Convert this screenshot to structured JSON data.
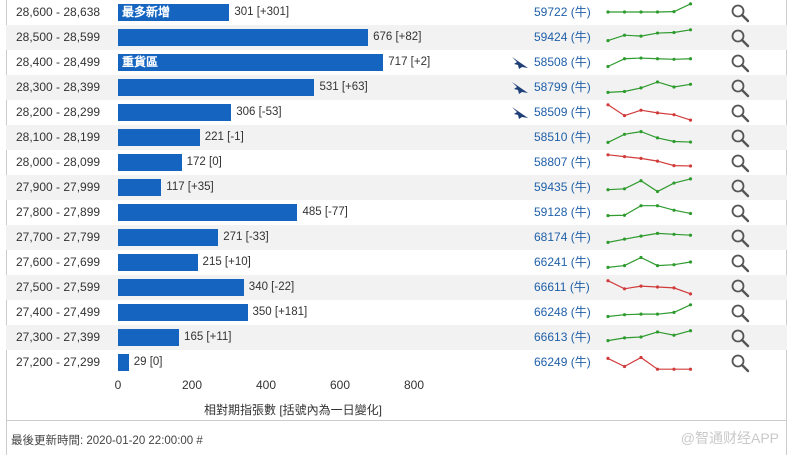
{
  "chart_data": {
    "type": "bar",
    "orientation": "horizontal",
    "xlabel": "相對期指張數 [括號內為一日變化]",
    "xlim": [
      0,
      800
    ],
    "x_ticks": [
      "0",
      "200",
      "400",
      "600",
      "800"
    ],
    "rows": [
      {
        "range": "28,600 - 28,638",
        "value": 301,
        "change": "+301",
        "value_text": "301 [+301]",
        "inlabel": "最多新增",
        "code": "59722 (牛)",
        "bird": false,
        "spark_color": "#2e9b2e",
        "spark": [
          0.5,
          0.5,
          0.5,
          0.5,
          0.52,
          0.95
        ]
      },
      {
        "range": "28,500 - 28,599",
        "value": 676,
        "change": "+82",
        "value_text": "676 [+82]",
        "inlabel": "",
        "code": "59424 (牛)",
        "bird": false,
        "spark_color": "#2e9b2e",
        "spark": [
          0.3,
          0.6,
          0.55,
          0.72,
          0.75,
          0.9
        ]
      },
      {
        "range": "28,400 - 28,499",
        "value": 717,
        "change": "+2",
        "value_text": "717 [+2]",
        "inlabel": "重貨區",
        "code": "58508 (牛)",
        "bird": true,
        "spark_color": "#2e9b2e",
        "spark": [
          0.25,
          0.68,
          0.72,
          0.68,
          0.65,
          0.68
        ]
      },
      {
        "range": "28,300 - 28,399",
        "value": 531,
        "change": "+63",
        "value_text": "531 [+63]",
        "inlabel": "",
        "code": "58799 (牛)",
        "bird": true,
        "spark_color": "#2e9b2e",
        "spark": [
          0.2,
          0.25,
          0.45,
          0.78,
          0.5,
          0.65
        ]
      },
      {
        "range": "28,200 - 28,299",
        "value": 306,
        "change": "-53",
        "value_text": "306 [-53]",
        "inlabel": "",
        "code": "58509 (牛)",
        "bird": true,
        "spark_color": "#d23b3b",
        "spark": [
          0.9,
          0.3,
          0.6,
          0.45,
          0.35,
          0.05
        ]
      },
      {
        "range": "28,100 - 28,199",
        "value": 221,
        "change": "-1",
        "value_text": "221 [-1]",
        "inlabel": "",
        "code": "58510 (牛)",
        "bird": false,
        "spark_color": "#2e9b2e",
        "spark": [
          0.2,
          0.65,
          0.8,
          0.45,
          0.25,
          0.22
        ]
      },
      {
        "range": "28,000 - 28,099",
        "value": 172,
        "change": "0",
        "value_text": "172 [0]",
        "inlabel": "",
        "code": "58807 (牛)",
        "bird": false,
        "spark_color": "#d23b3b",
        "spark": [
          0.9,
          0.8,
          0.7,
          0.55,
          0.3,
          0.28
        ]
      },
      {
        "range": "27,900 - 27,999",
        "value": 117,
        "change": "+35",
        "value_text": "117 [+35]",
        "inlabel": "",
        "code": "59435 (牛)",
        "bird": false,
        "spark_color": "#2e9b2e",
        "spark": [
          0.35,
          0.4,
          0.85,
          0.25,
          0.72,
          0.95
        ]
      },
      {
        "range": "27,800 - 27,899",
        "value": 485,
        "change": "-77",
        "value_text": "485 [-77]",
        "inlabel": "",
        "code": "59128 (牛)",
        "bird": false,
        "spark_color": "#2e9b2e",
        "spark": [
          0.3,
          0.32,
          0.85,
          0.85,
          0.6,
          0.42
        ]
      },
      {
        "range": "27,700 - 27,799",
        "value": 271,
        "change": "-33",
        "value_text": "271 [-33]",
        "inlabel": "",
        "code": "68174 (牛)",
        "bird": false,
        "spark_color": "#2e9b2e",
        "spark": [
          0.2,
          0.38,
          0.55,
          0.7,
          0.65,
          0.6
        ]
      },
      {
        "range": "27,600 - 27,699",
        "value": 215,
        "change": "+10",
        "value_text": "215 [+10]",
        "inlabel": "",
        "code": "66241 (牛)",
        "bird": false,
        "spark_color": "#2e9b2e",
        "spark": [
          0.2,
          0.3,
          0.75,
          0.3,
          0.35,
          0.5
        ]
      },
      {
        "range": "27,500 - 27,599",
        "value": 340,
        "change": "-22",
        "value_text": "340 [-22]",
        "inlabel": "",
        "code": "66611 (牛)",
        "bird": false,
        "spark_color": "#d23b3b",
        "spark": [
          0.85,
          0.4,
          0.55,
          0.5,
          0.45,
          0.12
        ]
      },
      {
        "range": "27,400 - 27,499",
        "value": 350,
        "change": "+181",
        "value_text": "350 [+181]",
        "inlabel": "",
        "code": "66248 (牛)",
        "bird": false,
        "spark_color": "#2e9b2e",
        "spark": [
          0.25,
          0.35,
          0.38,
          0.38,
          0.48,
          0.9
        ]
      },
      {
        "range": "27,300 - 27,399",
        "value": 165,
        "change": "+11",
        "value_text": "165 [+11]",
        "inlabel": "",
        "code": "66613 (牛)",
        "bird": false,
        "spark_color": "#2e9b2e",
        "spark": [
          0.3,
          0.45,
          0.5,
          0.78,
          0.6,
          0.85
        ]
      },
      {
        "range": "27,200 - 27,299",
        "value": 29,
        "change": "0",
        "value_text": "29 [0]",
        "inlabel": "",
        "code": "66249 (牛)",
        "bird": false,
        "spark_color": "#d23b3b",
        "spark": [
          0.7,
          0.25,
          0.75,
          0.1,
          0.1,
          0.1
        ]
      }
    ],
    "bar_color": "#1565c0"
  },
  "footer": {
    "updated": "最後更新時間: 2020-01-20 22:00:00 #",
    "watermark": "@智通财经APP"
  }
}
